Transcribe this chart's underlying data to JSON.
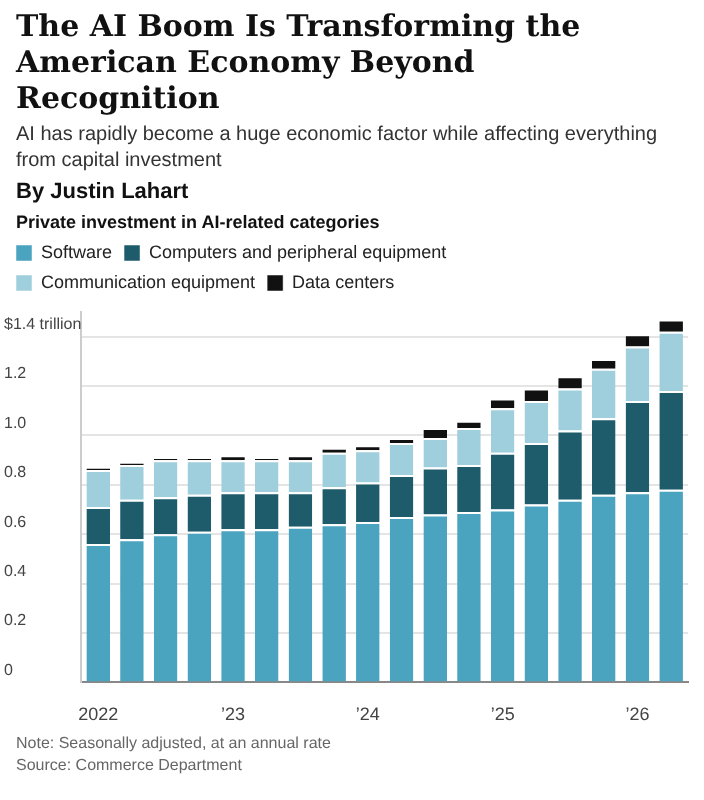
{
  "chart_data": {
    "type": "bar",
    "stacked": true,
    "title": "The AI Boom Is Transforming the American Economy Beyond Recognition",
    "subtitle": "AI has rapidly become a huge economic factor while affecting everything from capital investment",
    "annotations": [
      "By Justin Lahart",
      "Private investment in AI-related categories",
      "Note: Seasonally adjusted, at an annual rate",
      "Source: Commerce Department"
    ],
    "categories": [
      "2022",
      null,
      null,
      null,
      "’23",
      null,
      null,
      null,
      "’24",
      null,
      null,
      null,
      "’25",
      null,
      null,
      null,
      "’26",
      null
    ],
    "series": [
      {
        "name": "Software",
        "color": "#4aa3bf",
        "values": [
          0.56,
          0.58,
          0.6,
          0.61,
          0.62,
          0.62,
          0.63,
          0.64,
          0.65,
          0.67,
          0.68,
          0.69,
          0.7,
          0.72,
          0.74,
          0.76,
          0.77,
          0.78
        ]
      },
      {
        "name": "Computers and peripheral equipment",
        "color": "#1f5c6b",
        "values": [
          0.15,
          0.16,
          0.15,
          0.15,
          0.15,
          0.15,
          0.14,
          0.15,
          0.16,
          0.17,
          0.19,
          0.19,
          0.23,
          0.25,
          0.28,
          0.31,
          0.37,
          0.4
        ]
      },
      {
        "name": "Communication equipment",
        "color": "#9fcfdd",
        "values": [
          0.15,
          0.14,
          0.15,
          0.14,
          0.13,
          0.13,
          0.13,
          0.14,
          0.13,
          0.13,
          0.12,
          0.15,
          0.18,
          0.17,
          0.17,
          0.2,
          0.22,
          0.24
        ]
      },
      {
        "name": "Data centers",
        "color": "#111111",
        "values": [
          0.01,
          0.01,
          0.01,
          0.01,
          0.02,
          0.01,
          0.02,
          0.02,
          0.02,
          0.02,
          0.04,
          0.03,
          0.04,
          0.05,
          0.05,
          0.04,
          0.05,
          0.05
        ]
      }
    ],
    "ylim": [
      0,
      1.5
    ],
    "yticks": [
      0,
      0.2,
      0.4,
      0.6,
      0.8,
      {
        "value": 1,
        "label": "1.0"
      },
      1.2,
      {
        "value": 1.4,
        "label": "$1.4 trillion"
      }
    ],
    "grid": "y",
    "legend": "top"
  }
}
